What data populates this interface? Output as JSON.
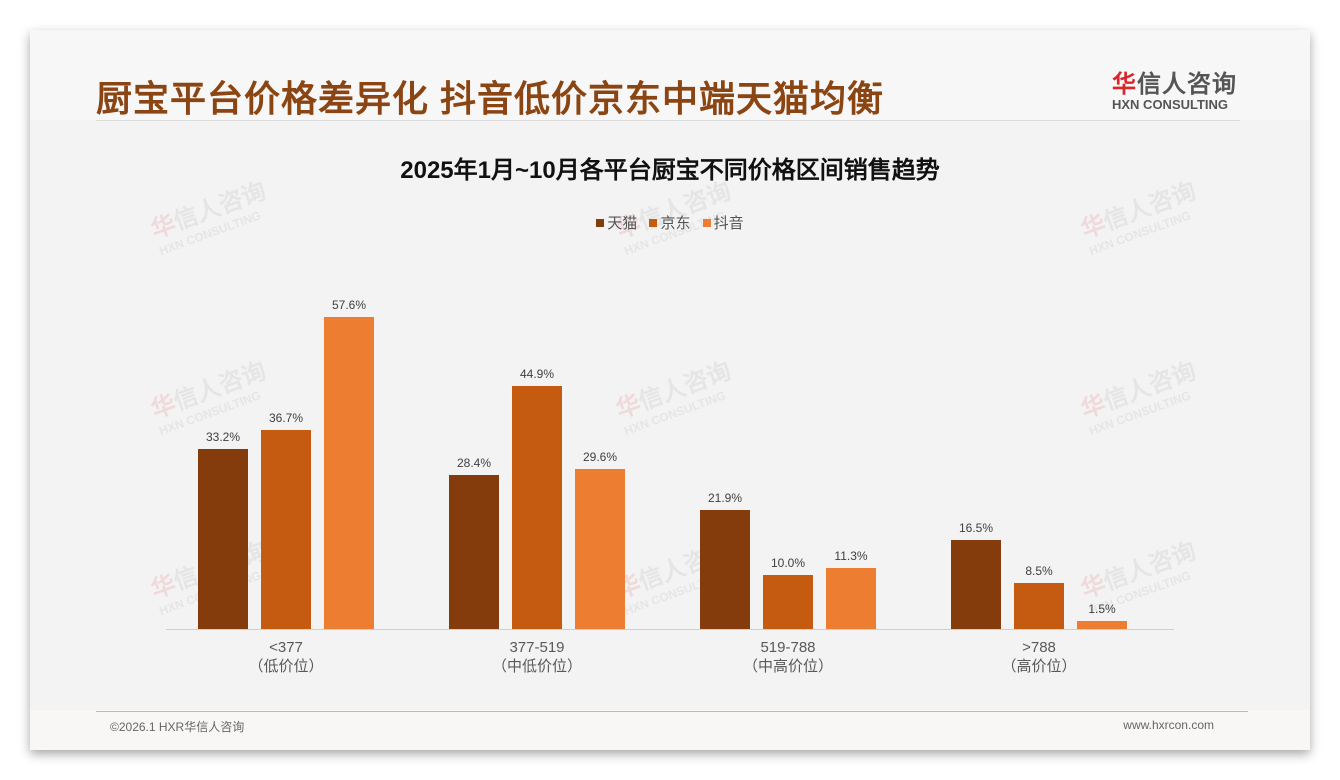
{
  "header": {
    "title": "厨宝平台价格差异化 抖音低价京东中端天猫均衡",
    "logo_cn_red": "华",
    "logo_cn_rest": "信人咨询",
    "logo_en": "HXN CONSULTING"
  },
  "watermark": {
    "cn_red": "华",
    "cn_rest": "信人咨询",
    "en": "HXN CONSULTING"
  },
  "footer": {
    "copyright": "©2026.1 HXR华信人咨询",
    "website": "www.hxrcon.com"
  },
  "colors": {
    "tmall": "#843c0c",
    "jd": "#c55a11",
    "douyin": "#ed7d31",
    "title": "#8b4513"
  },
  "chart_data": {
    "type": "bar",
    "title": "2025年1月~10月各平台厨宝不同价格区间销售趋势",
    "categories": [
      "<377",
      "377-519",
      "519-788",
      ">788"
    ],
    "category_sublabels": [
      "（低价位）",
      "（中低价位）",
      "（中高价位）",
      "（高价位）"
    ],
    "series": [
      {
        "name": "天猫",
        "values": [
          33.2,
          28.4,
          21.9,
          16.5
        ],
        "labels": [
          "33.2%",
          "28.4%",
          "21.9%",
          "16.5%"
        ]
      },
      {
        "name": "京东",
        "values": [
          36.7,
          44.9,
          10.0,
          8.5
        ],
        "labels": [
          "36.7%",
          "44.9%",
          "10.0%",
          "8.5%"
        ]
      },
      {
        "name": "抖音",
        "values": [
          57.6,
          29.6,
          11.3,
          1.5
        ],
        "labels": [
          "57.6%",
          "29.6%",
          "11.3%",
          "1.5%"
        ]
      }
    ],
    "xlabel": "",
    "ylabel": "",
    "ylim": [
      0,
      60
    ],
    "grid": false,
    "legend_position": "top",
    "unit": "%"
  }
}
